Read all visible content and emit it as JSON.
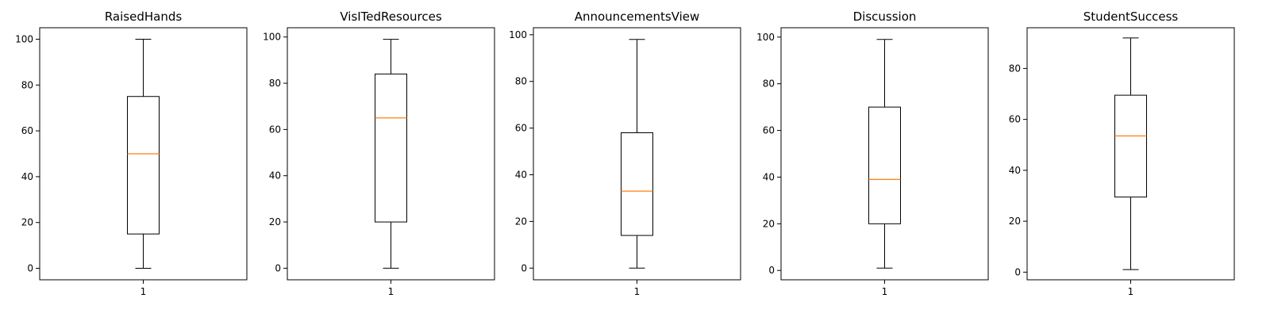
{
  "chart_data": {
    "type": "boxplot",
    "colors": {
      "box": "#000000",
      "median": "#ff7f0e",
      "axes": "#000000",
      "background": "#ffffff"
    },
    "panels": [
      {
        "title": "RaisedHands",
        "x_ticks": [
          "1"
        ],
        "ylim": [
          -5,
          105
        ],
        "yticks": [
          0,
          20,
          40,
          60,
          80,
          100
        ],
        "box": {
          "whisker_low": 0,
          "q1": 15,
          "median": 50,
          "q3": 75,
          "whisker_high": 100
        }
      },
      {
        "title": "VisITedResources",
        "x_ticks": [
          "1"
        ],
        "ylim": [
          -5,
          104
        ],
        "yticks": [
          0,
          20,
          40,
          60,
          80,
          100
        ],
        "box": {
          "whisker_low": 0,
          "q1": 20,
          "median": 65,
          "q3": 84,
          "whisker_high": 99
        }
      },
      {
        "title": "AnnouncementsView",
        "x_ticks": [
          "1"
        ],
        "ylim": [
          -5,
          103
        ],
        "yticks": [
          0,
          20,
          40,
          60,
          80,
          100
        ],
        "box": {
          "whisker_low": 0,
          "q1": 14,
          "median": 33,
          "q3": 58,
          "whisker_high": 98
        }
      },
      {
        "title": "Discussion",
        "x_ticks": [
          "1"
        ],
        "ylim": [
          -4,
          104
        ],
        "yticks": [
          0,
          20,
          40,
          60,
          80,
          100
        ],
        "box": {
          "whisker_low": 1,
          "q1": 20,
          "median": 39,
          "q3": 70,
          "whisker_high": 99
        }
      },
      {
        "title": "StudentSuccess",
        "x_ticks": [
          "1"
        ],
        "ylim": [
          -3,
          96
        ],
        "yticks": [
          0,
          20,
          40,
          60,
          80
        ],
        "box": {
          "whisker_low": 1,
          "q1": 29.5,
          "median": 53.5,
          "q3": 69.5,
          "whisker_high": 92
        }
      }
    ]
  }
}
